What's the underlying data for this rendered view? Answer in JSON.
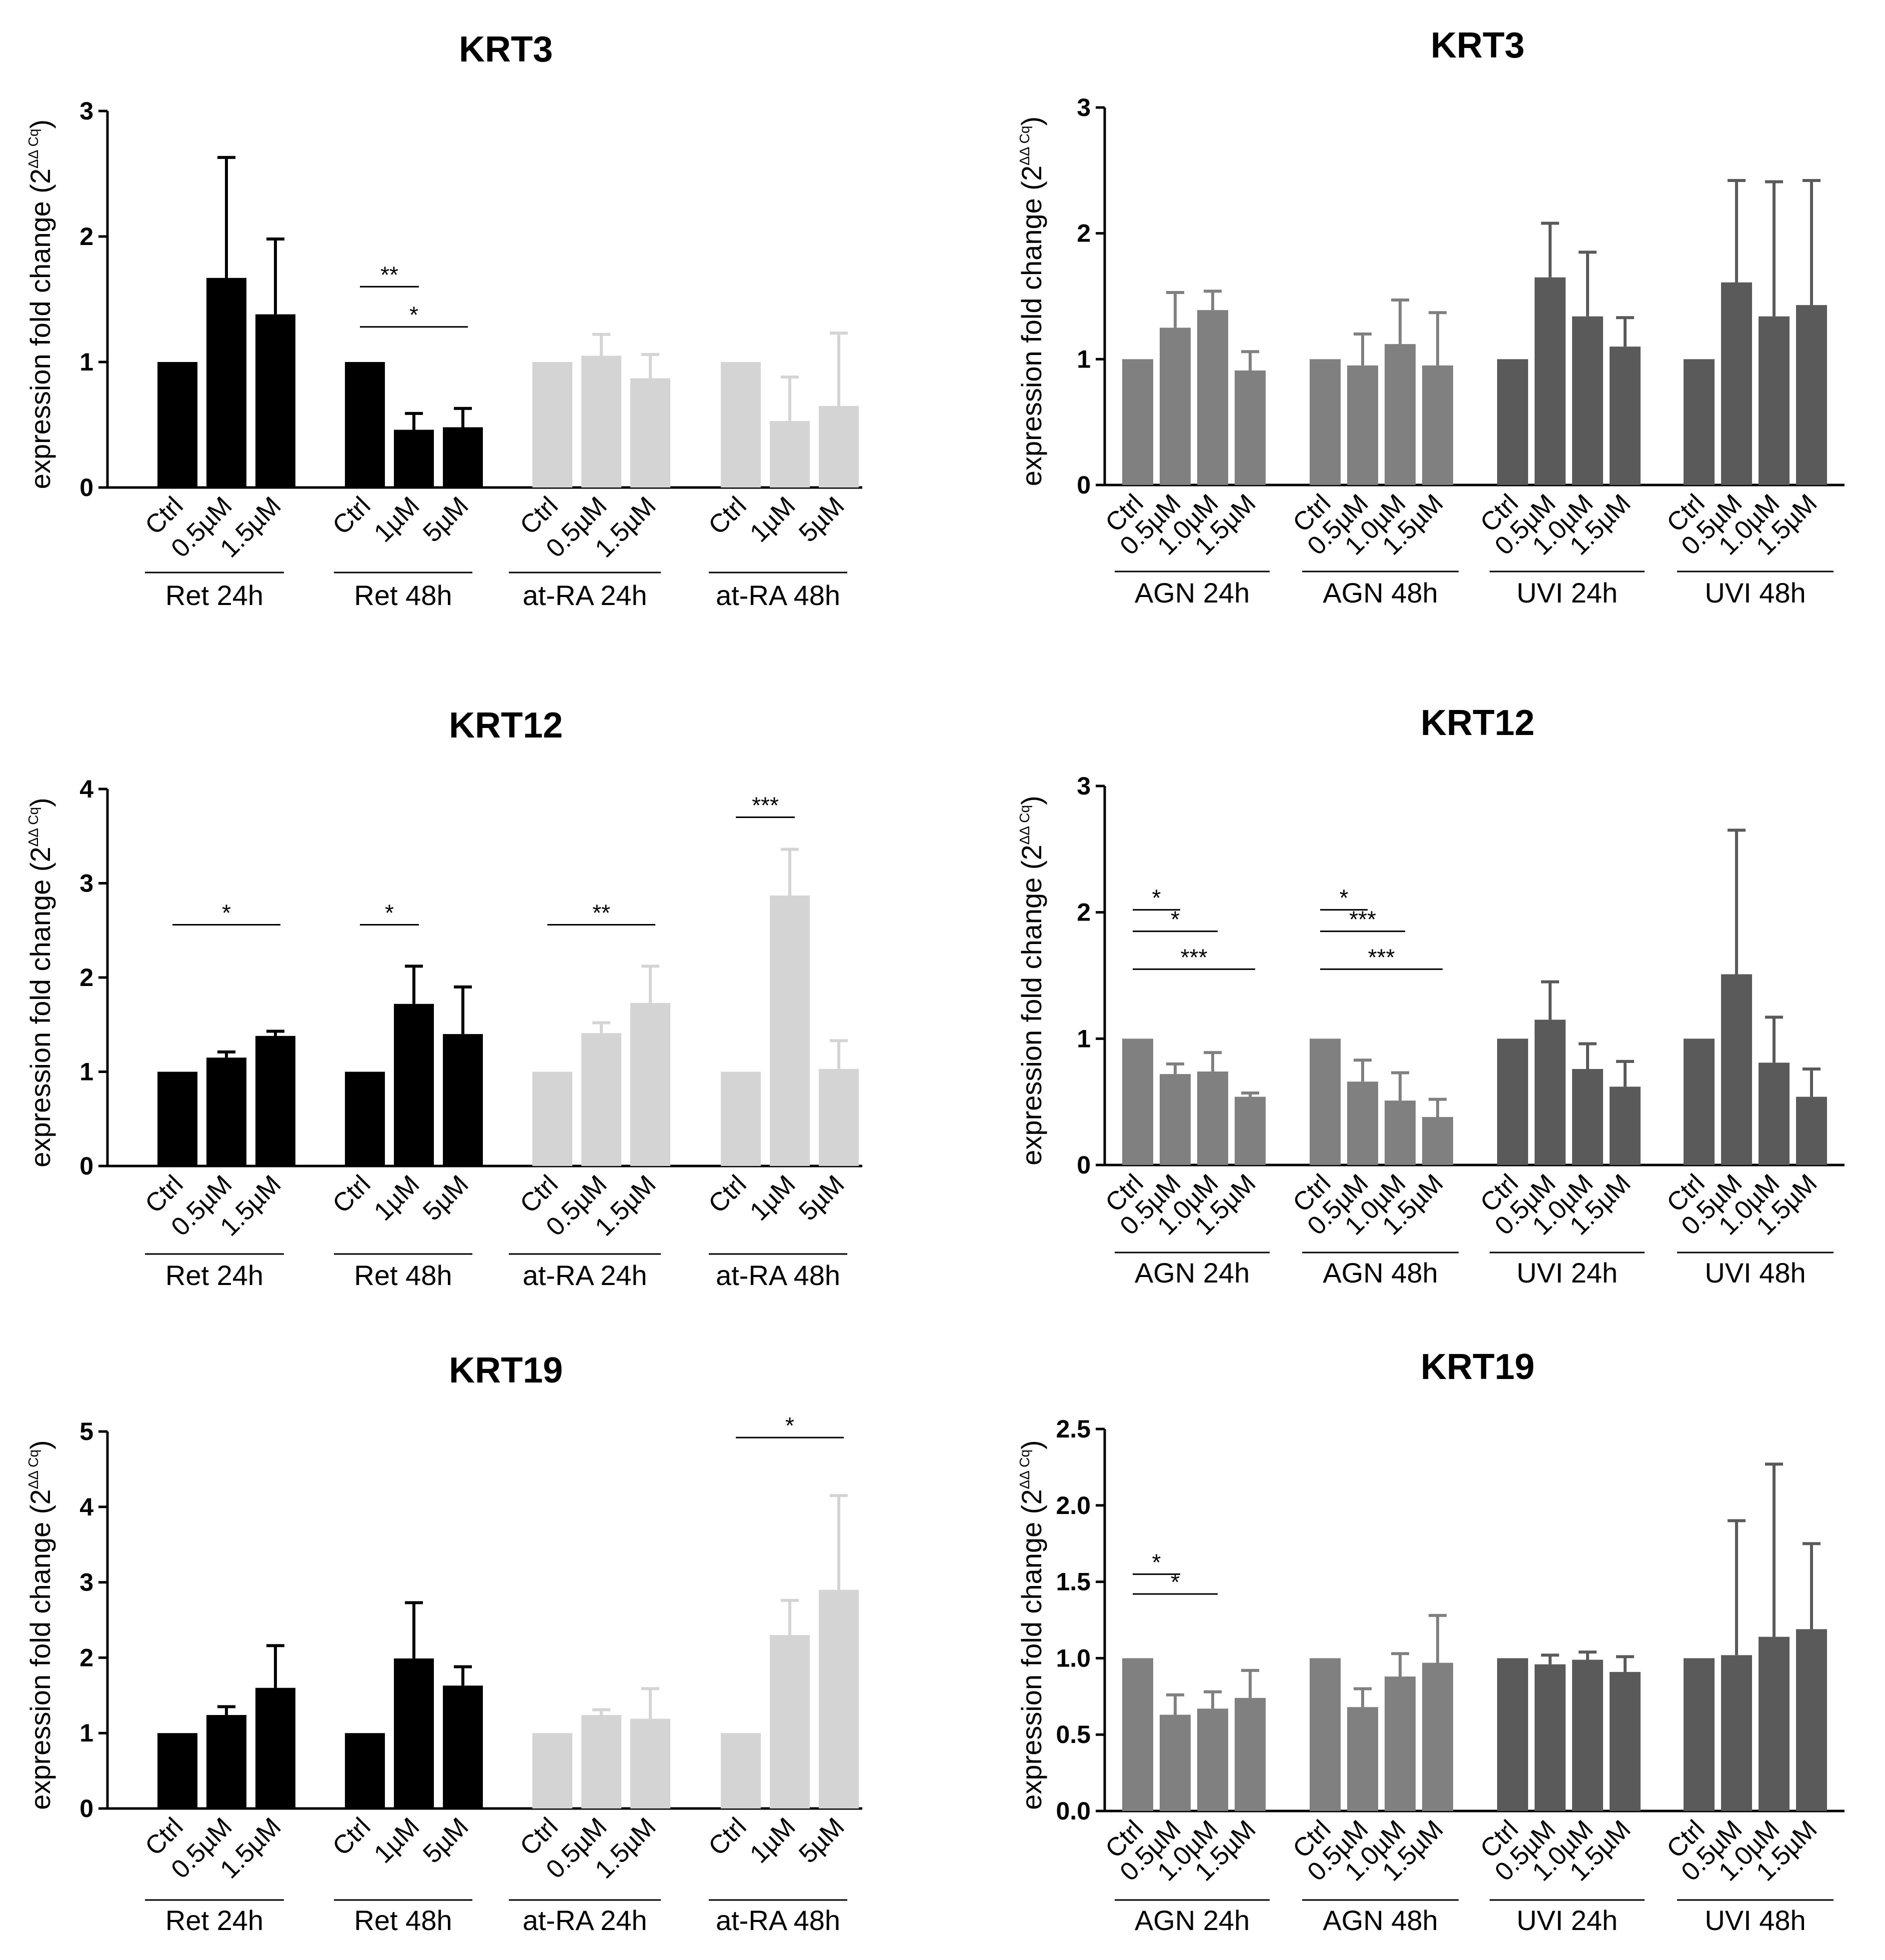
{
  "figure": {
    "ylabel_main": "expression fold change (2",
    "ylabel_sup": "ΔΔ Cq",
    "ylabel_close": ")"
  },
  "chart_data": [
    {
      "type": "bar",
      "title": "KRT3",
      "ylim": [
        0,
        3
      ],
      "yticks": [
        "0",
        "1",
        "2",
        "3"
      ],
      "groups": [
        {
          "name": "Ret 24h",
          "color": "#000000",
          "categories": [
            "Ctrl",
            "0.5µM",
            "1.5µM"
          ],
          "values": [
            1.0,
            1.67,
            1.38
          ],
          "errors": [
            0,
            0.96,
            0.6
          ]
        },
        {
          "name": "Ret 48h",
          "color": "#000000",
          "categories": [
            "Ctrl",
            "1µM",
            "5µM"
          ],
          "values": [
            1.0,
            0.46,
            0.48
          ],
          "errors": [
            0,
            0.13,
            0.15
          ]
        },
        {
          "name": "at-RA 24h",
          "color": "#d4d4d4",
          "categories": [
            "Ctrl",
            "0.5µM",
            "1.5µM"
          ],
          "values": [
            1.0,
            1.05,
            0.87
          ],
          "errors": [
            0,
            0.17,
            0.19
          ]
        },
        {
          "name": "at-RA 48h",
          "color": "#d4d4d4",
          "categories": [
            "Ctrl",
            "1µM",
            "5µM"
          ],
          "values": [
            1.0,
            0.53,
            0.65
          ],
          "errors": [
            0,
            0.35,
            0.58
          ]
        }
      ],
      "significance": [
        {
          "group": 1,
          "from": 0,
          "to": 1,
          "y": 1.6,
          "label": "**"
        },
        {
          "group": 1,
          "from": 0,
          "to": 2,
          "y": 1.28,
          "label": "*"
        }
      ]
    },
    {
      "type": "bar",
      "title": "KRT3",
      "ylim": [
        0,
        3
      ],
      "yticks": [
        "0",
        "1",
        "2",
        "3"
      ],
      "groups": [
        {
          "name": "AGN 24h",
          "color": "#808080",
          "categories": [
            "Ctrl",
            "0.5µM",
            "1.0µM",
            "1.5µM"
          ],
          "values": [
            1.0,
            1.25,
            1.39,
            0.91
          ],
          "errors": [
            0,
            0.28,
            0.15,
            0.15
          ]
        },
        {
          "name": "AGN 48h",
          "color": "#808080",
          "categories": [
            "Ctrl",
            "0.5µM",
            "1.0µM",
            "1.5µM"
          ],
          "values": [
            1.0,
            0.95,
            1.12,
            0.95
          ],
          "errors": [
            0,
            0.25,
            0.35,
            0.42
          ]
        },
        {
          "name": "UVI 24h",
          "color": "#5a5a5a",
          "categories": [
            "Ctrl",
            "0.5µM",
            "1.0µM",
            "1.5µM"
          ],
          "values": [
            1.0,
            1.65,
            1.34,
            1.1
          ],
          "errors": [
            0,
            0.43,
            0.51,
            0.23
          ]
        },
        {
          "name": "UVI 48h",
          "color": "#5a5a5a",
          "categories": [
            "Ctrl",
            "0.5µM",
            "1.0µM",
            "1.5µM"
          ],
          "values": [
            1.0,
            1.61,
            1.34,
            1.43
          ],
          "errors": [
            0,
            0.81,
            1.07,
            0.99
          ]
        }
      ],
      "significance": []
    },
    {
      "type": "bar",
      "title": "KRT12",
      "ylim": [
        0,
        4
      ],
      "yticks": [
        "0",
        "1",
        "2",
        "3",
        "4"
      ],
      "groups": [
        {
          "name": "Ret 24h",
          "color": "#000000",
          "categories": [
            "Ctrl",
            "0.5µM",
            "1.5µM"
          ],
          "values": [
            1.0,
            1.15,
            1.38
          ],
          "errors": [
            0,
            0.06,
            0.05
          ]
        },
        {
          "name": "Ret 48h",
          "color": "#000000",
          "categories": [
            "Ctrl",
            "1µM",
            "5µM"
          ],
          "values": [
            1.0,
            1.72,
            1.4
          ],
          "errors": [
            0,
            0.4,
            0.5
          ]
        },
        {
          "name": "at-RA 24h",
          "color": "#d4d4d4",
          "categories": [
            "Ctrl",
            "0.5µM",
            "1.5µM"
          ],
          "values": [
            1.0,
            1.41,
            1.73
          ],
          "errors": [
            0,
            0.11,
            0.39
          ]
        },
        {
          "name": "at-RA 48h",
          "color": "#d4d4d4",
          "categories": [
            "Ctrl",
            "1µM",
            "5µM"
          ],
          "values": [
            1.0,
            2.87,
            1.03
          ],
          "errors": [
            0,
            0.49,
            0.3
          ]
        }
      ],
      "significance": [
        {
          "group": 0,
          "from": 0,
          "to": 2,
          "y": 2.56,
          "label": "*"
        },
        {
          "group": 1,
          "from": 0,
          "to": 1,
          "y": 2.56,
          "label": "*"
        },
        {
          "group": 2,
          "from": 0,
          "to": 2,
          "y": 2.56,
          "label": "**"
        },
        {
          "group": 3,
          "from": 0,
          "to": 1,
          "y": 3.7,
          "label": "***"
        }
      ]
    },
    {
      "type": "bar",
      "title": "KRT12",
      "ylim": [
        0,
        3
      ],
      "yticks": [
        "0",
        "1",
        "2",
        "3"
      ],
      "groups": [
        {
          "name": "AGN 24h",
          "color": "#808080",
          "categories": [
            "Ctrl",
            "0.5µM",
            "1.0µM",
            "1.5µM"
          ],
          "values": [
            1.0,
            0.72,
            0.74,
            0.54
          ],
          "errors": [
            0,
            0.08,
            0.15,
            0.03
          ]
        },
        {
          "name": "AGN 48h",
          "color": "#808080",
          "categories": [
            "Ctrl",
            "0.5µM",
            "1.0µM",
            "1.5µM"
          ],
          "values": [
            1.0,
            0.66,
            0.51,
            0.38
          ],
          "errors": [
            0,
            0.17,
            0.22,
            0.14
          ]
        },
        {
          "name": "UVI 24h",
          "color": "#5a5a5a",
          "categories": [
            "Ctrl",
            "0.5µM",
            "1.0µM",
            "1.5µM"
          ],
          "values": [
            1.0,
            1.15,
            0.76,
            0.62
          ],
          "errors": [
            0,
            0.3,
            0.2,
            0.2
          ]
        },
        {
          "name": "UVI 48h",
          "color": "#5a5a5a",
          "categories": [
            "Ctrl",
            "0.5µM",
            "1.0µM",
            "1.5µM"
          ],
          "values": [
            1.0,
            1.51,
            0.81,
            0.54
          ],
          "errors": [
            0,
            1.14,
            0.36,
            0.22
          ]
        }
      ],
      "significance": [
        {
          "group": 0,
          "from": 0,
          "to": 1,
          "y": 2.02,
          "label": "*"
        },
        {
          "group": 0,
          "from": 0,
          "to": 2,
          "y": 1.85,
          "label": "*"
        },
        {
          "group": 0,
          "from": 0,
          "to": 3,
          "y": 1.55,
          "label": "***"
        },
        {
          "group": 1,
          "from": 0,
          "to": 1,
          "y": 2.02,
          "label": "*"
        },
        {
          "group": 1,
          "from": 0,
          "to": 2,
          "y": 1.85,
          "label": "***"
        },
        {
          "group": 1,
          "from": 0,
          "to": 3,
          "y": 1.55,
          "label": "***"
        }
      ]
    },
    {
      "type": "bar",
      "title": "KRT19",
      "ylim": [
        0,
        5
      ],
      "yticks": [
        "0",
        "1",
        "2",
        "3",
        "4",
        "5"
      ],
      "groups": [
        {
          "name": "Ret 24h",
          "color": "#000000",
          "categories": [
            "Ctrl",
            "0.5µM",
            "1.5µM"
          ],
          "values": [
            1.0,
            1.24,
            1.6
          ],
          "errors": [
            0,
            0.11,
            0.56
          ]
        },
        {
          "name": "Ret 48h",
          "color": "#000000",
          "categories": [
            "Ctrl",
            "1µM",
            "5µM"
          ],
          "values": [
            1.0,
            1.99,
            1.63
          ],
          "errors": [
            0,
            0.74,
            0.25
          ]
        },
        {
          "name": "at-RA 24h",
          "color": "#d4d4d4",
          "categories": [
            "Ctrl",
            "0.5µM",
            "1.5µM"
          ],
          "values": [
            1.0,
            1.24,
            1.19
          ],
          "errors": [
            0,
            0.07,
            0.4
          ]
        },
        {
          "name": "at-RA 48h",
          "color": "#d4d4d4",
          "categories": [
            "Ctrl",
            "1µM",
            "5µM"
          ],
          "values": [
            1.0,
            2.3,
            2.9
          ],
          "errors": [
            0,
            0.46,
            1.25
          ]
        }
      ],
      "significance": [
        {
          "group": 3,
          "from": 0,
          "to": 2,
          "y": 4.92,
          "label": "*"
        }
      ]
    },
    {
      "type": "bar",
      "title": "KRT19",
      "ylim": [
        0,
        2.5
      ],
      "yticks": [
        "0.0",
        "0.5",
        "1.0",
        "1.5",
        "2.0",
        "2.5"
      ],
      "groups": [
        {
          "name": "AGN 24h",
          "color": "#808080",
          "categories": [
            "Ctrl",
            "0.5µM",
            "1.0µM",
            "1.5µM"
          ],
          "values": [
            1.0,
            0.63,
            0.67,
            0.74
          ],
          "errors": [
            0,
            0.13,
            0.11,
            0.18
          ]
        },
        {
          "name": "AGN 48h",
          "color": "#808080",
          "categories": [
            "Ctrl",
            "0.5µM",
            "1.0µM",
            "1.5µM"
          ],
          "values": [
            1.0,
            0.68,
            0.88,
            0.97
          ],
          "errors": [
            0,
            0.12,
            0.15,
            0.31
          ]
        },
        {
          "name": "UVI 24h",
          "color": "#5a5a5a",
          "categories": [
            "Ctrl",
            "0.5µM",
            "1.0µM",
            "1.5µM"
          ],
          "values": [
            1.0,
            0.96,
            0.99,
            0.91
          ],
          "errors": [
            0,
            0.06,
            0.05,
            0.1
          ]
        },
        {
          "name": "UVI 48h",
          "color": "#5a5a5a",
          "categories": [
            "Ctrl",
            "0.5µM",
            "1.0µM",
            "1.5µM"
          ],
          "values": [
            1.0,
            1.02,
            1.14,
            1.19
          ],
          "errors": [
            0,
            0.88,
            1.13,
            0.56
          ]
        }
      ],
      "significance": [
        {
          "group": 0,
          "from": 0,
          "to": 1,
          "y": 1.55,
          "label": "*"
        },
        {
          "group": 0,
          "from": 0,
          "to": 2,
          "y": 1.42,
          "label": "*"
        }
      ]
    }
  ]
}
